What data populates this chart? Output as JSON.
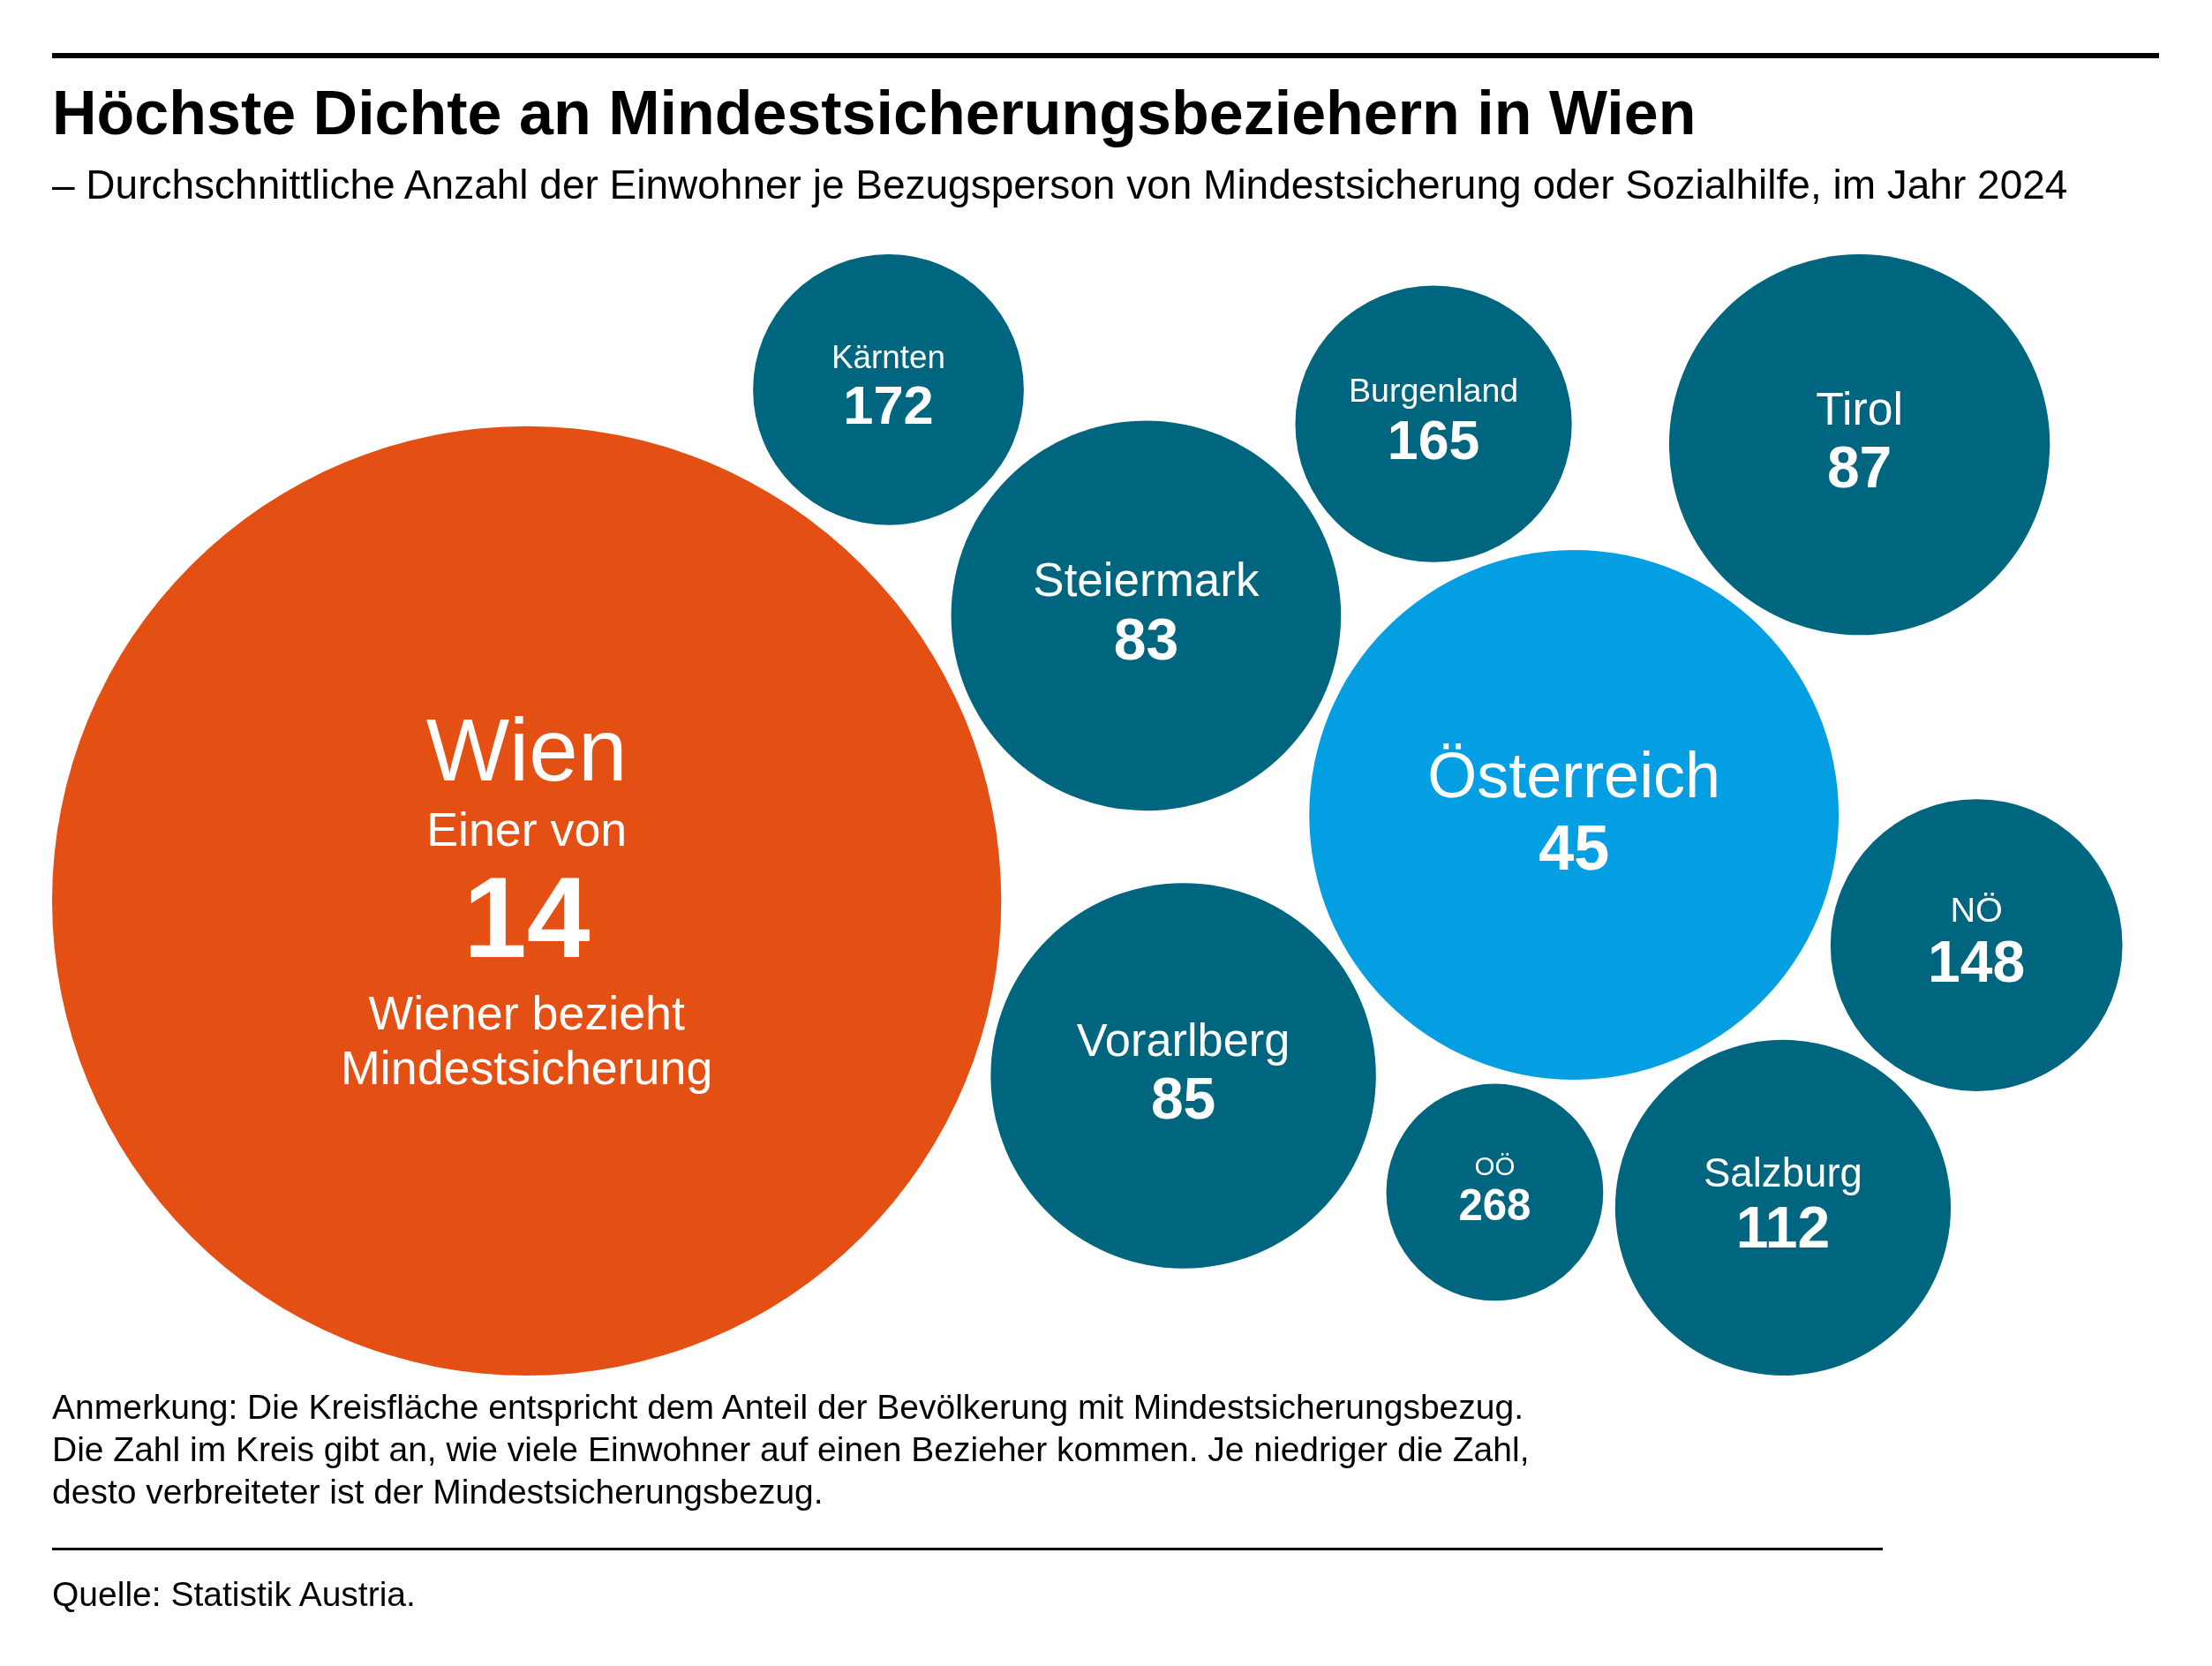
{
  "chart_data": {
    "type": "other",
    "title": "Höchste Dichte an Mindestsicherungsbeziehern in Wien",
    "subtitle": "– Durchschnittliche Anzahl der Einwohner je Bezugsperson von Mindestsicherung oder Sozialhilfe, im Jahr 2024",
    "categories": [
      "Wien",
      "NÖ",
      "OÖ",
      "Vorarlberg",
      "Kärnten",
      "Salzburg",
      "Tirol",
      "Burgenland",
      "Österreich",
      "Steiermark"
    ],
    "values": [
      14,
      148,
      268,
      85,
      172,
      112,
      87,
      165,
      45,
      83
    ],
    "colors": [
      "#e44f14",
      "#00667f",
      "#00667f",
      "#00667f",
      "#00667f",
      "#00667f",
      "#00667f",
      "#00667f",
      "#049fe2",
      "#00667f"
    ],
    "data_labels": true,
    "annotations": [
      {
        "text": "Einer von",
        "x": "Wien"
      },
      {
        "text": "Wiener bezieht Mindestsicherung",
        "x": "Wien"
      },
      "Anmerkung: Die Kreisfläche entspricht dem Anteil der Bevölkerung mit Mindestsicherungsbezug.",
      "Die Zahl im Kreis gibt an, wie viele Einwohner auf einen Bezieher kommen. Je niedriger die Zahl, desto verbreiteter ist der Mindestsicherungsbezug.",
      "Quelle: Statistik Austria."
    ]
  }
}
